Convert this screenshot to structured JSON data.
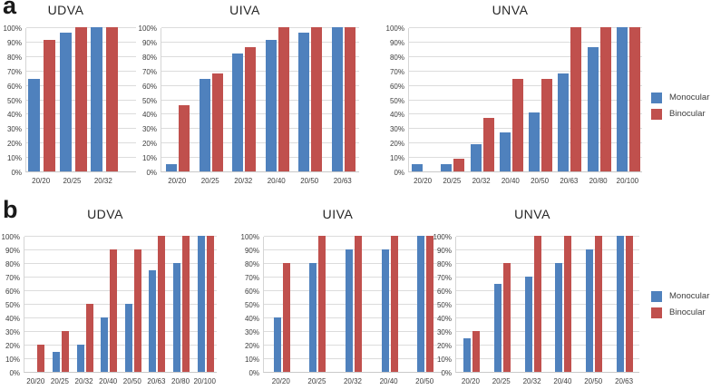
{
  "figure_title": "",
  "panels": {
    "a_label": "a",
    "b_label": "b"
  },
  "legend": {
    "monocular": "Monocular",
    "binocular": "Binocular"
  },
  "colors": {
    "monocular": "#4F81BD",
    "binocular": "#C0504D",
    "gridline": "#dcdcdc",
    "axis_text": "#3d3d3d",
    "background": "#ffffff"
  },
  "y_axis": {
    "min": 0,
    "max": 100,
    "step": 10,
    "tick_labels": [
      "0%",
      "10%",
      "20%",
      "30%",
      "40%",
      "50%",
      "60%",
      "70%",
      "80%",
      "90%",
      "100%"
    ]
  },
  "chart_data": [
    {
      "panel": "a",
      "type": "bar",
      "title": "UDVA",
      "categories": [
        "20/20",
        "20/25",
        "20/32"
      ],
      "series": [
        {
          "name": "Monocular",
          "values": [
            64,
            96,
            100
          ]
        },
        {
          "name": "Binocular",
          "values": [
            91,
            100,
            100
          ]
        }
      ],
      "xlabel": "",
      "ylabel": "",
      "ylim": [
        0,
        100
      ],
      "grid": true,
      "legend_position": "right"
    },
    {
      "panel": "a",
      "type": "bar",
      "title": "UIVA",
      "categories": [
        "20/20",
        "20/25",
        "20/32",
        "20/40",
        "20/50",
        "20/63"
      ],
      "series": [
        {
          "name": "Monocular",
          "values": [
            5,
            64,
            82,
            91,
            96,
            100
          ]
        },
        {
          "name": "Binocular",
          "values": [
            46,
            68,
            86,
            100,
            100,
            100
          ]
        }
      ],
      "xlabel": "",
      "ylabel": "",
      "ylim": [
        0,
        100
      ],
      "grid": true,
      "legend_position": "right"
    },
    {
      "panel": "a",
      "type": "bar",
      "title": "UNVA",
      "categories": [
        "20/20",
        "20/25",
        "20/32",
        "20/40",
        "20/50",
        "20/63",
        "20/80",
        "20/100"
      ],
      "series": [
        {
          "name": "Monocular",
          "values": [
            5,
            5,
            19,
            27,
            41,
            68,
            86,
            100
          ]
        },
        {
          "name": "Binocular",
          "values": [
            0,
            9,
            37,
            64,
            64,
            100,
            100,
            100
          ]
        }
      ],
      "xlabel": "",
      "ylabel": "",
      "ylim": [
        0,
        100
      ],
      "grid": true,
      "legend_position": "right"
    },
    {
      "panel": "b",
      "type": "bar",
      "title": "UDVA",
      "categories": [
        "20/20",
        "20/25",
        "20/32",
        "20/40",
        "20/50",
        "20/63",
        "20/80",
        "20/100"
      ],
      "series": [
        {
          "name": "Monocular",
          "values": [
            0,
            15,
            20,
            40,
            50,
            75,
            80,
            100
          ]
        },
        {
          "name": "Binocular",
          "values": [
            20,
            30,
            50,
            90,
            90,
            100,
            100,
            100
          ]
        }
      ],
      "xlabel": "",
      "ylabel": "",
      "ylim": [
        0,
        100
      ],
      "grid": true,
      "legend_position": "right"
    },
    {
      "panel": "b",
      "type": "bar",
      "title": "UIVA",
      "categories": [
        "20/20",
        "20/25",
        "20/32",
        "20/40",
        "20/50"
      ],
      "series": [
        {
          "name": "Monocular",
          "values": [
            40,
            80,
            90,
            90,
            100
          ]
        },
        {
          "name": "Binocular",
          "values": [
            80,
            100,
            100,
            100,
            100
          ]
        }
      ],
      "xlabel": "",
      "ylabel": "",
      "ylim": [
        0,
        100
      ],
      "grid": true,
      "legend_position": "right"
    },
    {
      "panel": "b",
      "type": "bar",
      "title": "UNVA",
      "categories": [
        "20/20",
        "20/25",
        "20/32",
        "20/40",
        "20/50",
        "20/63"
      ],
      "series": [
        {
          "name": "Monocular",
          "values": [
            25,
            65,
            70,
            80,
            90,
            100
          ]
        },
        {
          "name": "Binocular",
          "values": [
            30,
            80,
            100,
            100,
            100,
            100
          ]
        }
      ],
      "xlabel": "",
      "ylabel": "",
      "ylim": [
        0,
        100
      ],
      "grid": true,
      "legend_position": "right"
    }
  ]
}
